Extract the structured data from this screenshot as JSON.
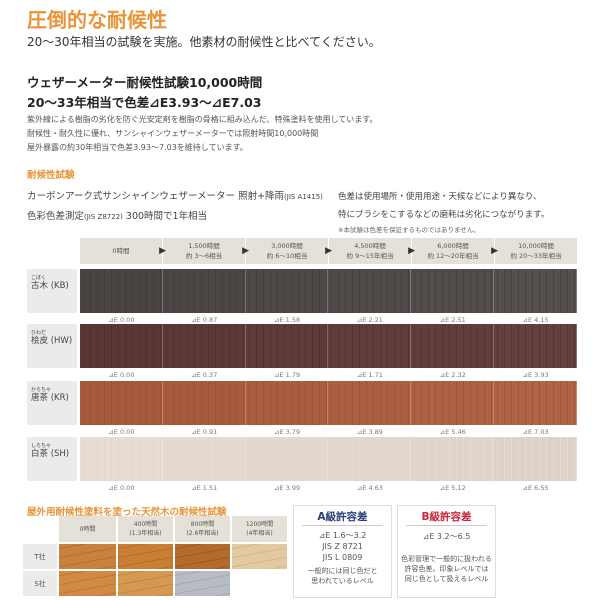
{
  "title": "圧倒的な耐候性",
  "subtitle": "20〜30年相当の試験を実施。他素材の耐候性と比べてください。",
  "headline": [
    "ウェザーメーター耐候性試験10,000時間",
    "20〜33年相当で色差⊿E3.93〜⊿E7.03"
  ],
  "description": [
    "紫外線による樹脂の劣化を防ぐ光安定剤を樹脂の骨格に組み込んだ、特殊塗料を使用しています。",
    "耐候性・耐久性に優れ、サンシャインウェザーメーターでは照射時間10,000時間",
    "屋外暴露の約30年相当で色差3.93〜7.03を維持しています。"
  ],
  "test": {
    "heading": "耐候性試験",
    "method_line1": "カーボンアーク式サンシャインウェザーメーター 照射+降雨",
    "method_line1_std": "(JIS A1415)",
    "method_line2a": "色彩色差測定",
    "method_line2_std": "(JIS Z8722)",
    "method_line2b": " 300時間で1年相当",
    "note": [
      "色差は使用場所・使用用途・天候などにより異なり、",
      "特にブラシをこするなどの磨耗は劣化につながります。",
      "※本試験は色差を保証するものではありません。"
    ],
    "columns": [
      [
        "0時間",
        ""
      ],
      [
        "1,500時間",
        "約 3〜6相当"
      ],
      [
        "3,000時間",
        "約 6〜10相当"
      ],
      [
        "4,500時間",
        "約 9〜15年相当"
      ],
      [
        "6,000時間",
        "約 12〜20年相当"
      ],
      [
        "10,000時間",
        "約 20〜33年相当"
      ]
    ],
    "rows": [
      {
        "ruby": "こぼく",
        "name": "古木 (KB)",
        "color": "#4a4443",
        "values": [
          "⊿E 0.00",
          "⊿E 0.87",
          "⊿E 1.58",
          "⊿E 2.21",
          "⊿E 2.51",
          "⊿E 4.15"
        ]
      },
      {
        "ruby": "ひわだ",
        "name": "桧皮 (HW)",
        "color": "#5a3634",
        "values": [
          "⊿E 0.00",
          "⊿E 0.37",
          "⊿E 1.79",
          "⊿E 1.71",
          "⊿E 2.32",
          "⊿E 3.93"
        ]
      },
      {
        "ruby": "からちゃ",
        "name": "唐茶 (KR)",
        "color": "#a55a3c",
        "values": [
          "⊿E 0.00",
          "⊿E 0.91",
          "⊿E 3.79",
          "⊿E 3.89",
          "⊿E 5.46",
          "⊿E 7.03"
        ]
      },
      {
        "ruby": "しらちゃ",
        "name": "白茶 (SH)",
        "color": "#e6dcd4",
        "values": [
          "⊿E 0.00",
          "⊿E 1.51",
          "⊿E 3.99",
          "⊿E 4.63",
          "⊿E 5.12",
          "⊿E 6.55"
        ]
      }
    ]
  },
  "natural": {
    "heading": "屋外用耐候性塗料を塗った天然木の耐候性試験",
    "columns": [
      [
        "0時間",
        ""
      ],
      [
        "400時間",
        "(1.3年相当)"
      ],
      [
        "800時間",
        "(2.6年相当)"
      ],
      [
        "1200時間",
        "(4年相当)"
      ]
    ],
    "rows": [
      {
        "label": "T社",
        "colors": [
          "#c9823e",
          "#c97e36",
          "#b36a2e",
          "#e2c9a0"
        ]
      },
      {
        "label": "S社",
        "colors": [
          "#d08a44",
          "#d49a52",
          "#b7bcc4",
          ""
        ]
      }
    ]
  },
  "grade_a": {
    "title": "A級許容差",
    "color": "#2a3f7a",
    "lines": [
      "⊿E 1.6〜3.2",
      "JIS Z 8721",
      "JIS L 0809"
    ],
    "desc": [
      "一般的には同じ色だと",
      "思われているレベル"
    ]
  },
  "grade_b": {
    "title": "B級許容差",
    "color": "#c8283a",
    "lines": [
      "⊿E 3.2〜6.5"
    ],
    "desc": [
      "色彩管理で一般的に扱われる",
      "許容色差。印象レベルでは",
      "同じ色として扱えるレベル"
    ]
  }
}
